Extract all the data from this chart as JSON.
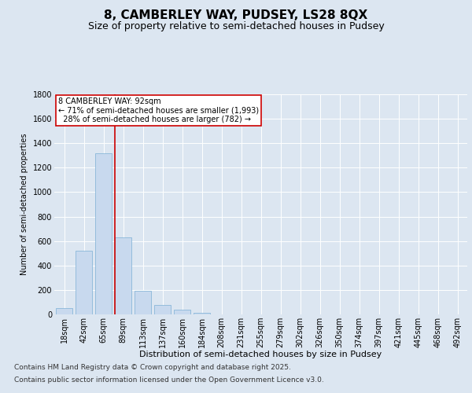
{
  "title1": "8, CAMBERLEY WAY, PUDSEY, LS28 8QX",
  "title2": "Size of property relative to semi-detached houses in Pudsey",
  "xlabel": "Distribution of semi-detached houses by size in Pudsey",
  "ylabel": "Number of semi-detached properties",
  "bar_color": "#c8d9ee",
  "bar_edge_color": "#7bafd4",
  "background_color": "#dce6f1",
  "plot_bg_color": "#dce6f1",
  "categories": [
    "18sqm",
    "42sqm",
    "65sqm",
    "89sqm",
    "113sqm",
    "137sqm",
    "160sqm",
    "184sqm",
    "208sqm",
    "231sqm",
    "255sqm",
    "279sqm",
    "302sqm",
    "326sqm",
    "350sqm",
    "374sqm",
    "397sqm",
    "421sqm",
    "445sqm",
    "468sqm",
    "492sqm"
  ],
  "values": [
    50,
    520,
    1320,
    630,
    190,
    75,
    40,
    15,
    0,
    0,
    0,
    0,
    0,
    0,
    0,
    0,
    0,
    0,
    0,
    0,
    0
  ],
  "ylim": [
    0,
    1800
  ],
  "yticks": [
    0,
    200,
    400,
    600,
    800,
    1000,
    1200,
    1400,
    1600,
    1800
  ],
  "vline_bin_index": 3,
  "annotation_title": "8 CAMBERLEY WAY: 92sqm",
  "annotation_line1": "← 71% of semi-detached houses are smaller (1,993)",
  "annotation_line2": "28% of semi-detached houses are larger (782) →",
  "annotation_box_facecolor": "#ffffff",
  "annotation_box_edgecolor": "#cc0000",
  "vline_color": "#cc0000",
  "footer1": "Contains HM Land Registry data © Crown copyright and database right 2025.",
  "footer2": "Contains public sector information licensed under the Open Government Licence v3.0.",
  "title1_fontsize": 11,
  "title2_fontsize": 9,
  "annotation_fontsize": 7,
  "footer_fontsize": 6.5,
  "axis_label_fontsize": 8,
  "tick_fontsize": 7,
  "ylabel_fontsize": 7
}
